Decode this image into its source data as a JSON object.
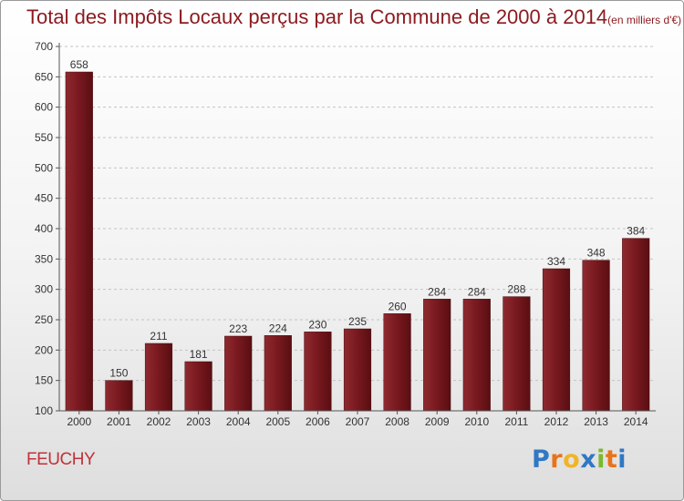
{
  "chart_data": {
    "type": "bar",
    "title": "Total des Impôts Locaux perçus par la Commune de 2000 à 2014",
    "title_unit": "(en milliers d'€)",
    "categories": [
      "2000",
      "2001",
      "2002",
      "2003",
      "2004",
      "2005",
      "2006",
      "2007",
      "2008",
      "2009",
      "2010",
      "2011",
      "2012",
      "2013",
      "2014"
    ],
    "values": [
      658,
      150,
      211,
      181,
      223,
      224,
      230,
      235,
      260,
      284,
      284,
      288,
      334,
      348,
      384
    ],
    "yticks": [
      100,
      150,
      200,
      250,
      300,
      350,
      400,
      450,
      500,
      550,
      600,
      650,
      700
    ],
    "ylim": [
      100,
      700
    ],
    "grid": "horizontal dashed",
    "bar_color": "#7a1a20"
  },
  "commune": "FEUCHY",
  "logo": {
    "letters": [
      "P",
      "r",
      "o",
      "x",
      "i",
      "t",
      "i"
    ],
    "colors": [
      "#2f78c4",
      "#e8731a",
      "#f0b429",
      "#2f78c4",
      "#7cb82f",
      "#e8731a",
      "#2f78c4"
    ]
  }
}
